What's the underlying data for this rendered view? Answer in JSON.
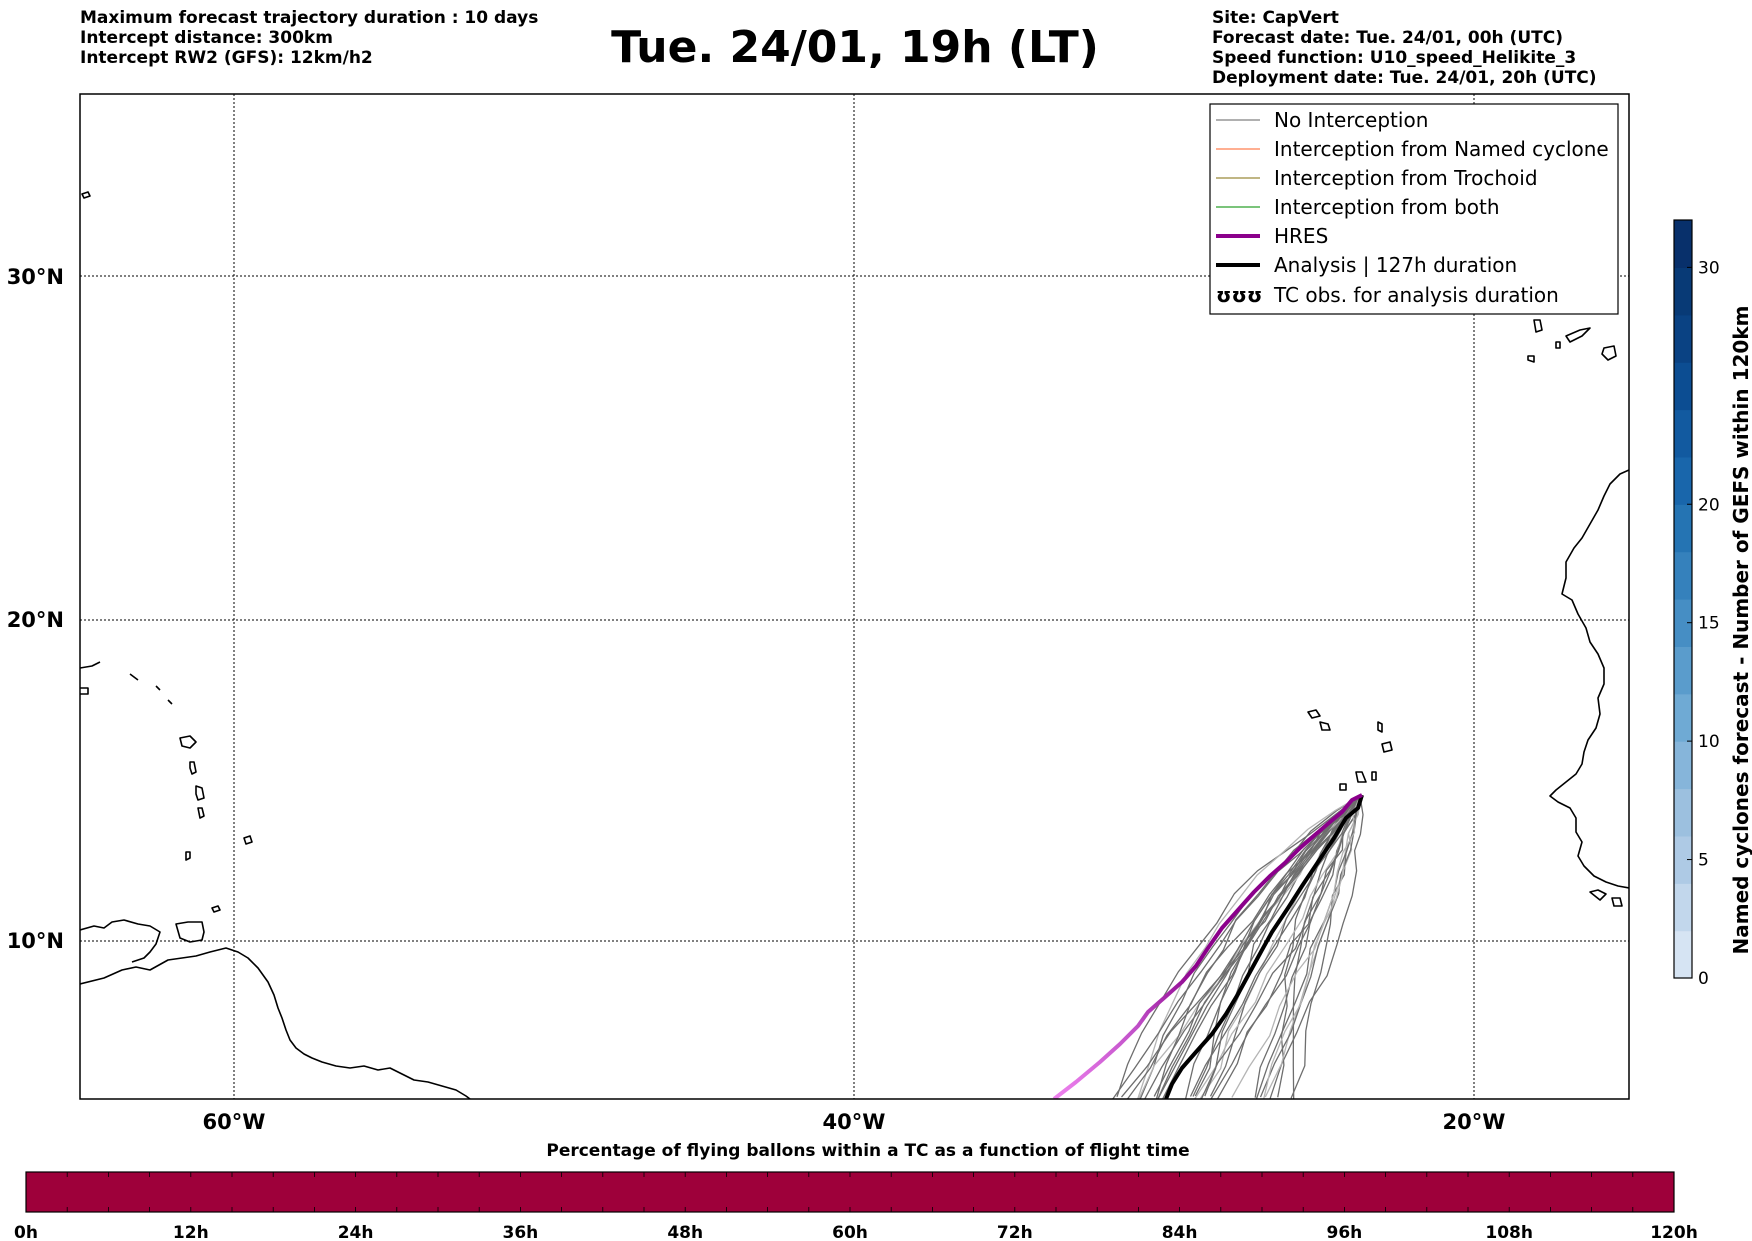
{
  "header_left": {
    "line1": "Maximum forecast trajectory duration : 10 days",
    "line2": "Intercept distance: 300km",
    "line3": "Intercept RW2 (GFS):  12km/h2"
  },
  "title": "Tue. 24/01, 19h (LT)",
  "header_right": {
    "line1": "Site: CapVert",
    "line2": "Forecast date: Tue. 24/01, 00h (UTC)",
    "line3": "Speed function: U10_speed_Helikite_3",
    "line4": "Deployment date: Tue. 24/01, 20h (UTC)"
  },
  "map": {
    "lon_range": [
      -65,
      15
    ],
    "lat_range": [
      5.3,
      34.7
    ],
    "lon_labels": [
      "60°W",
      "40°W",
      "20°W"
    ],
    "lat_labels": [
      "30°N",
      "20°N",
      "10°N"
    ],
    "site": {
      "name": "CapVert",
      "lon": -23.5,
      "lat": 14.9
    }
  },
  "legend": {
    "items": [
      {
        "label": "No Interception",
        "color": "#808080"
      },
      {
        "label": "Interception from Named cyclone",
        "color": "#ff7f50"
      },
      {
        "label": "Interception from Trochoid",
        "color": "#9a8a3a"
      },
      {
        "label": "Interception from both",
        "color": "#2ca02c"
      },
      {
        "label": "HRES",
        "color": "#8b008b"
      },
      {
        "label": "Analysis | 127h duration",
        "color": "#000000"
      },
      {
        "label": "TC obs. for analysis duration",
        "symbol": "ʊʊʊ"
      }
    ]
  },
  "colorbar": {
    "label": "Named cyclones forecast - Number of GEFS within 120km",
    "ticks": [
      "0",
      "5",
      "10",
      "15",
      "20",
      "30"
    ],
    "tick_values": [
      0,
      5,
      10,
      15,
      20,
      30
    ],
    "max": 32,
    "colors": [
      "#d6e4f3",
      "#c2d7ec",
      "#aecae5",
      "#9cc0df",
      "#86b5da",
      "#6faad4",
      "#5a9ccc",
      "#468ec4",
      "#3581bc",
      "#2574b3",
      "#1966ab",
      "#125aa0",
      "#0c4d92",
      "#0a4283",
      "#083a76",
      "#08306b"
    ]
  },
  "percentage_bar": {
    "title": "Percentage of flying ballons within a TC as a function of flight time",
    "ticks": [
      "0h",
      "12h",
      "24h",
      "36h",
      "48h",
      "60h",
      "72h",
      "84h",
      "96h",
      "108h",
      "120h"
    ],
    "fill_color": "#9e003a",
    "percent_values": [
      0,
      0,
      0,
      0,
      0,
      0,
      0,
      0,
      0,
      0,
      0,
      0,
      0,
      0,
      0,
      0,
      0,
      0,
      0,
      0,
      0,
      0,
      0,
      0,
      0,
      0,
      0,
      0,
      0,
      0,
      0,
      0,
      0,
      0,
      0,
      0,
      0,
      0,
      0,
      0
    ]
  }
}
